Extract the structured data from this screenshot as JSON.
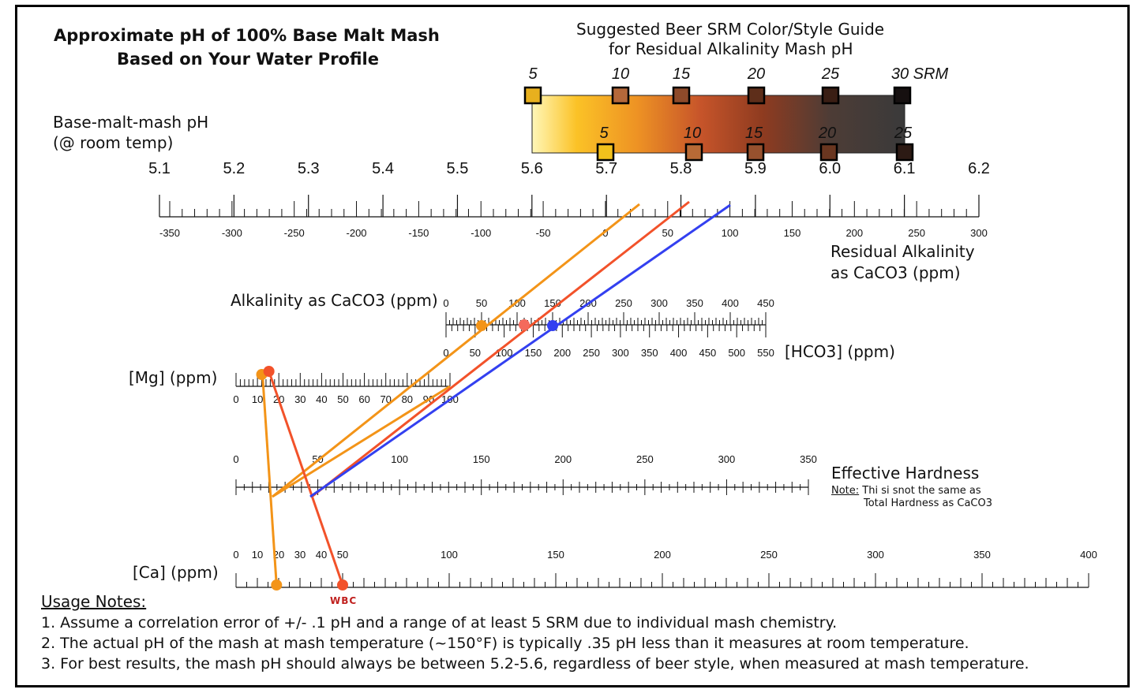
{
  "title": {
    "line1": "Approximate pH of 100% Base Malt Mash",
    "line2": "Based on Your Water Profile"
  },
  "srm_guide": {
    "heading_line1": "Suggested Beer SRM Color/Style Guide",
    "heading_line2": "for Residual Alkalinity Mash pH",
    "top_labels": [
      "5",
      "10",
      "15",
      "20",
      "25",
      "30 SRM"
    ],
    "bottom_labels": [
      "5",
      "10",
      "15",
      "20",
      "25"
    ],
    "top_colors": [
      "#e8b01e",
      "#b5683a",
      "#8e4a2a",
      "#5e2e1a",
      "#3a1e14",
      "#161010"
    ],
    "bottom_colors": [
      "#f2c11c",
      "#b86a36",
      "#97512e",
      "#6a3620",
      "#2c1a14"
    ]
  },
  "ph_scale": {
    "label_line1": "Base-malt-mash pH",
    "label_line2": "(@ room temp)",
    "ticks": [
      "5.1",
      "5.2",
      "5.3",
      "5.4",
      "5.5",
      "5.6",
      "5.7",
      "5.8",
      "5.9",
      "6.0",
      "6.1",
      "6.2"
    ]
  },
  "ra_scale": {
    "label_line1": "Residual Alkalinity",
    "label_line2": "as CaCO3 (ppm)",
    "ticks": [
      "-350",
      "-300",
      "-250",
      "-200",
      "-150",
      "-100",
      "-50",
      "0",
      "50",
      "100",
      "150",
      "200",
      "250",
      "300"
    ]
  },
  "alkalinity_scale": {
    "label": "Alkalinity as CaCO3 (ppm)",
    "ticks": [
      "0",
      "50",
      "100",
      "150",
      "200",
      "250",
      "300",
      "350",
      "400",
      "450"
    ]
  },
  "hco3_scale": {
    "label": "[HCO3] (ppm)",
    "ticks": [
      "0",
      "50",
      "100",
      "150",
      "200",
      "250",
      "300",
      "350",
      "400",
      "450",
      "500",
      "550"
    ]
  },
  "mg_scale": {
    "label": "[Mg] (ppm)",
    "ticks": [
      "0",
      "10",
      "20",
      "30",
      "40",
      "50",
      "60",
      "70",
      "80",
      "90",
      "100"
    ]
  },
  "hardness_scale": {
    "label": "Effective Hardness",
    "note_prefix": "Note:",
    "note_line1": " Thi si snot the same as",
    "note_line2": "Total Hardness as CaCO3",
    "ticks": [
      "0",
      "50",
      "100",
      "150",
      "200",
      "250",
      "300",
      "350"
    ]
  },
  "ca_scale": {
    "label": "[Ca] (ppm)",
    "ticks": [
      "0",
      "10",
      "20",
      "30",
      "40",
      "50",
      "100",
      "150",
      "200",
      "250",
      "300",
      "350",
      "400"
    ]
  },
  "brand": "WBC",
  "usage_notes": {
    "heading": "Usage Notes:",
    "items": [
      "1. Assume a correlation error of +/- .1 pH and a range of at least 5 SRM due to individual mash chemistry.",
      "2. The actual pH of the mash at mash temperature (~150°F) is typically .35 pH less than it measures at room temperature.",
      "3. For best results, the mash pH should always be between 5.2-5.6, regardless of beer style, when measured at mash temperature."
    ]
  },
  "example_lines": [
    {
      "color": "#f39418",
      "ca": 19,
      "mg": 12,
      "alkalinity": 50,
      "ra": 50
    },
    {
      "color": "#f2522a",
      "ca": 50,
      "mg": 15,
      "alkalinity": 110,
      "ra": 100
    },
    {
      "color": "#3340f0",
      "alkalinity": 150,
      "ra": 160
    }
  ]
}
